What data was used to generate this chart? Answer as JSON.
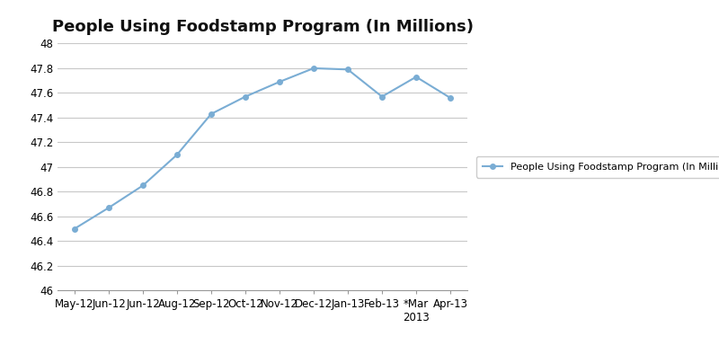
{
  "title": "People Using Foodstamp Program (In Millions)",
  "categories": [
    "May-12",
    "Jun-12",
    "Jun-12",
    "Aug-12",
    "Sep-12",
    "Oct-12",
    "Nov-12",
    "Dec-12",
    "Jan-13",
    "Feb-13",
    "*Mar\n2013",
    "Apr-13"
  ],
  "values": [
    46.5,
    46.67,
    46.85,
    47.1,
    47.43,
    47.57,
    47.69,
    47.8,
    47.79,
    47.57,
    47.73,
    47.56
  ],
  "ylim": [
    46.0,
    48.0
  ],
  "ytick_values": [
    46.0,
    46.2,
    46.4,
    46.6,
    46.8,
    47.0,
    47.2,
    47.4,
    47.6,
    47.8,
    48.0
  ],
  "ytick_labels": [
    "46",
    "46.2",
    "46.4",
    "46.6",
    "46.8",
    "47",
    "47.2",
    "47.4",
    "47.6",
    "47.8",
    "48"
  ],
  "line_color": "#7aadd4",
  "marker_color": "#7aadd4",
  "legend_label": "People Using Foodstamp Program (In Millions)",
  "title_fontsize": 13,
  "tick_fontsize": 8.5,
  "legend_fontsize": 8,
  "background_color": "#ffffff",
  "grid_color": "#c8c8c8"
}
